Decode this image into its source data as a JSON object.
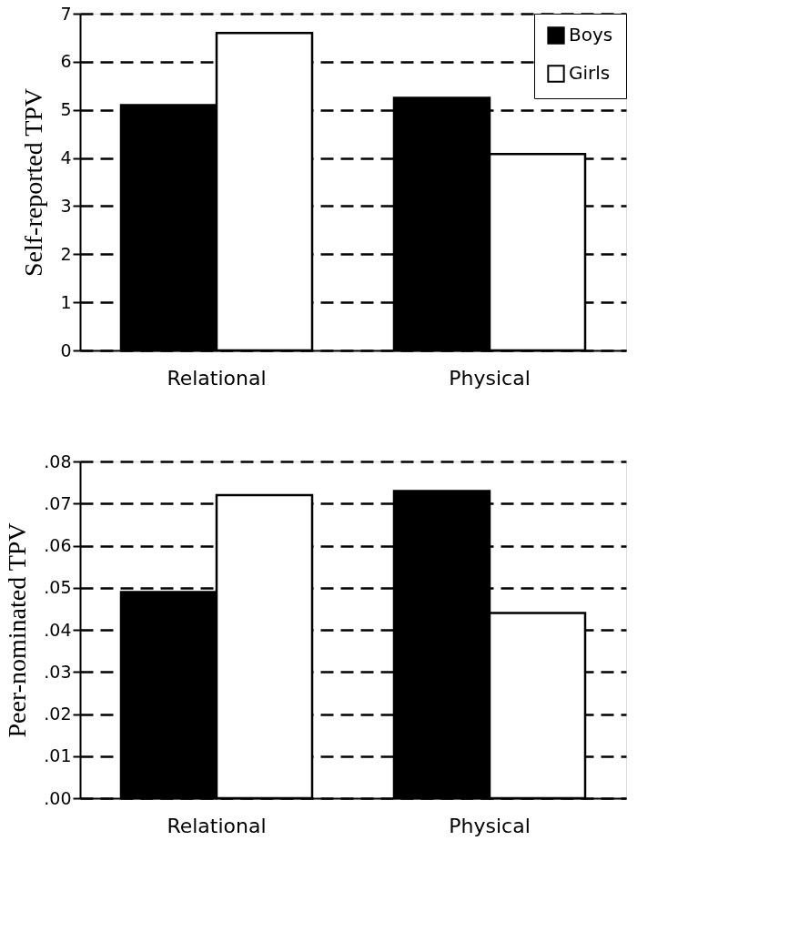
{
  "chart_data": [
    {
      "type": "bar",
      "ylabel": "Self-reported TPV",
      "categories": [
        "Relational",
        "Physical"
      ],
      "series": [
        {
          "name": "Boys",
          "color": "#000000",
          "values": [
            5.1,
            5.25
          ]
        },
        {
          "name": "Girls",
          "color": "#ffffff",
          "values": [
            6.6,
            4.08
          ]
        }
      ],
      "ylim": [
        0,
        7
      ],
      "yticks": [
        0,
        1,
        2,
        3,
        4,
        5,
        6,
        7
      ],
      "grid": "y",
      "legend": "top right"
    },
    {
      "type": "bar",
      "ylabel": "Peer-nominated TPV",
      "categories": [
        "Relational",
        "Physical"
      ],
      "series": [
        {
          "color": "#000000",
          "values": [
            0.049,
            0.073
          ]
        },
        {
          "color": "#ffffff",
          "values": [
            0.072,
            0.044
          ]
        }
      ],
      "ylim": [
        0,
        0.08
      ],
      "yticks": [
        {
          "value": 0,
          "label": ".00"
        },
        {
          "value": 0.01,
          "label": ".01"
        },
        {
          "value": 0.02,
          "label": ".02"
        },
        {
          "value": 0.03,
          "label": ".03"
        },
        {
          "value": 0.04,
          "label": ".04"
        },
        {
          "value": 0.05,
          "label": ".05"
        },
        {
          "value": 0.06,
          "label": ".06"
        },
        {
          "value": 0.07,
          "label": ".07"
        },
        {
          "value": 0.08,
          "label": ".08"
        }
      ],
      "grid": "y"
    }
  ]
}
